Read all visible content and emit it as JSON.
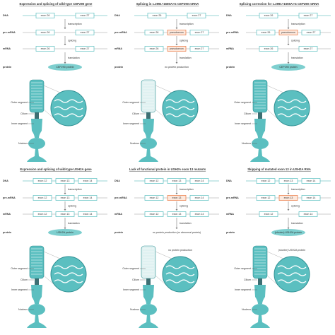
{
  "panels": [
    {
      "title": "Expression and splicing of wild-type CEP290 gene",
      "row_labels": [
        "DNA",
        "pre-mRNA",
        "mRNA",
        "protein"
      ],
      "dna": [
        "exon 26",
        "exon 27"
      ],
      "pre_mrna": [
        "exon 26",
        "exon 27"
      ],
      "mrna": [
        "exon 26",
        "exon 27"
      ],
      "steps": [
        "transcription",
        "splicing",
        "translation"
      ],
      "protein": "CEP290 protein"
    },
    {
      "title": "Splicing in c.2991+1655A>G CEP290 mRNA",
      "row_labels": [
        "DNA",
        "pre-mRNA",
        "mRNA",
        "protein"
      ],
      "dna": [
        "exon 26",
        "exon 27"
      ],
      "pre_mrna": [
        "exon 26",
        "pseudoexon",
        "exon 27"
      ],
      "mrna": [
        "exon 26",
        "pseudoexon",
        "exon 27"
      ],
      "steps": [
        "transcription",
        "splicing",
        "translation"
      ],
      "protein": "no protein production"
    },
    {
      "title": "Splicing correction for c.2991+1655A>G CEP290 mRNA",
      "row_labels": [
        "DNA",
        "pre-mRNA",
        "mRNA",
        "protein"
      ],
      "dna": [
        "exon 26",
        "exon 27"
      ],
      "pre_mrna": [
        "exon 26",
        "pseudoexon",
        "exon 27"
      ],
      "mrna": [
        "exon 26",
        "exon 27"
      ],
      "steps": [
        "transcription",
        "splicing",
        "translation"
      ],
      "protein": "CEP290 protein"
    },
    {
      "title": "Expression and splicing of wild-type USH2A gene",
      "row_labels": [
        "DNA",
        "pre-mRNA",
        "mRNA",
        "protein"
      ],
      "dna": [
        "exon 12",
        "exon 13",
        "exon 14"
      ],
      "pre_mrna": [
        "exon 12",
        "exon 13",
        "exon 14"
      ],
      "mrna": [
        "exon 12",
        "exon 13",
        "exon 14"
      ],
      "steps": [
        "transcription",
        "splicing",
        "translation"
      ],
      "protein": "USH2A protein"
    },
    {
      "title": "Lack of functional protein in USH2A exon 13 mutants",
      "row_labels": [
        "DNA",
        "pre-mRNA",
        "mRNA",
        "protein"
      ],
      "dna": [
        "exon 12",
        "exon 13",
        "exon 14"
      ],
      "pre_mrna": [
        "exon 12",
        "exon 13",
        "exon 14"
      ],
      "mrna": [
        "exon 12",
        "exon 13",
        "exon 14"
      ],
      "steps": [
        "transcription",
        "splicing",
        "translation"
      ],
      "protein": "no protein production (or abnormal protein)"
    },
    {
      "title": "Skipping of mutated exon 13 in USH2A RNA",
      "row_labels": [
        "DNA",
        "pre-mRNA",
        "mRNA",
        "protein"
      ],
      "dna": [
        "exon 12",
        "exon 13",
        "exon 14"
      ],
      "pre_mrna": [
        "exon 12",
        "exon 13",
        "exon 14"
      ],
      "mrna": [
        "exon 12",
        "exon 14"
      ],
      "steps": [
        "transcription",
        "splicing",
        "translation"
      ],
      "protein": "(shorter) USH2A protein"
    }
  ],
  "cells": [
    {
      "labels": [
        "Outer segment",
        "Cilium",
        "Inner segment",
        "Nucleus"
      ]
    },
    {
      "labels": [
        "Outer segment",
        "Cilium",
        "Inner segment",
        "Nucleus"
      ]
    },
    {
      "labels": [
        "Outer segment",
        "Cilium",
        "Inner segment",
        "Nucleus"
      ]
    },
    {
      "labels": [
        "Outer segment",
        "Cilium",
        "Inner segment",
        "Nucleus"
      ]
    },
    {
      "labels": [
        "Outer segment",
        "Cilium",
        "Inner segment",
        "Nucleus"
      ],
      "note": "no protein production"
    },
    {
      "labels": [
        "Outer segment",
        "Cilium",
        "Inner segment",
        "Nucleus"
      ],
      "note": "(shorter) USH2A protein"
    }
  ]
}
